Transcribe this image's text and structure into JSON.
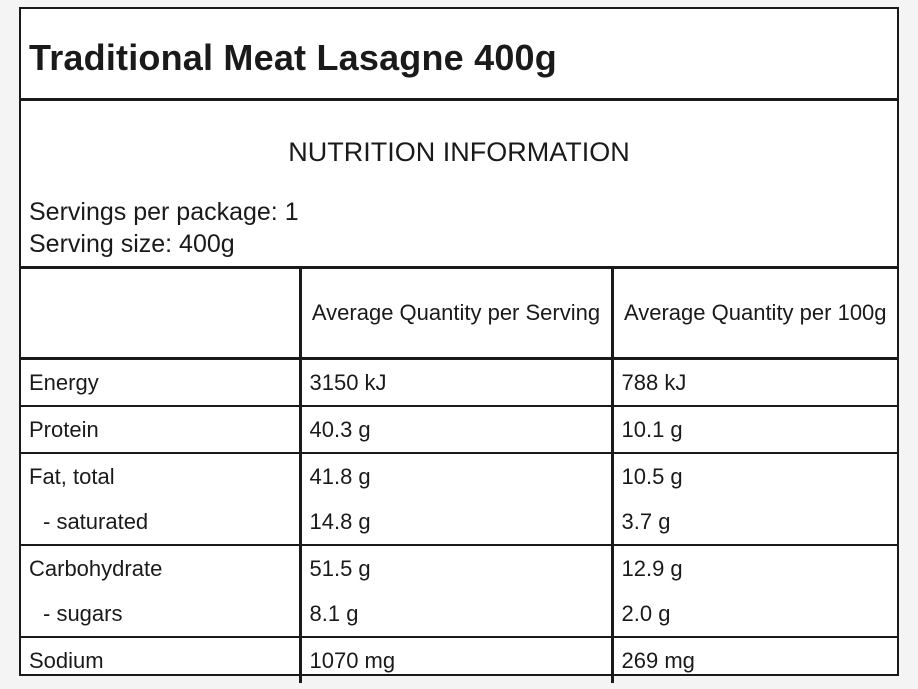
{
  "title": "Traditional Meat Lasagne 400g",
  "heading": "NUTRITION INFORMATION",
  "servings_per_package": "Servings per package: 1",
  "serving_size": "Serving size: 400g",
  "columns": {
    "blank": "",
    "per_serving": "Average Quantity per Serving",
    "per_100g": "Average Quantity per 100g"
  },
  "rows": [
    {
      "label": "Energy",
      "per_serving": "3150 kJ",
      "per_100g": "788 kJ"
    },
    {
      "label": "Protein",
      "per_serving": "40.3 g",
      "per_100g": "10.1 g"
    },
    {
      "label": "Fat, total",
      "per_serving": "41.8 g",
      "per_100g": "10.5 g"
    },
    {
      "label": "- saturated",
      "per_serving": "14.8 g",
      "per_100g": "3.7 g"
    },
    {
      "label": "Carbohydrate",
      "per_serving": "51.5 g",
      "per_100g": "12.9 g"
    },
    {
      "label": "- sugars",
      "per_serving": "8.1 g",
      "per_100g": "2.0 g"
    },
    {
      "label": "Sodium",
      "per_serving": "1070 mg",
      "per_100g": "269 mg"
    }
  ]
}
